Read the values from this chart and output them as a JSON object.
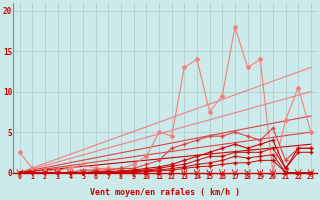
{
  "background_color": "#cceaea",
  "grid_color": "#aac8c8",
  "xlim": [
    -0.5,
    23.5
  ],
  "ylim": [
    0,
    21
  ],
  "xlabel": "Vent moyen/en rafales ( km/h )",
  "yticks": [
    0,
    5,
    10,
    15,
    20
  ],
  "xticks": [
    0,
    1,
    2,
    3,
    4,
    5,
    6,
    7,
    8,
    9,
    10,
    11,
    12,
    13,
    14,
    15,
    16,
    17,
    18,
    19,
    20,
    21,
    22,
    23
  ],
  "lp": "#f08080",
  "mp": "#e04040",
  "dr": "#cc0000",
  "wavy_x": [
    0,
    1,
    2,
    3,
    4,
    5,
    6,
    7,
    8,
    9,
    10,
    11,
    12,
    13,
    14,
    15,
    16,
    17,
    18,
    19,
    20,
    21,
    22,
    23
  ],
  "wavy_y": [
    2.5,
    0.5,
    0.2,
    0.3,
    0.5,
    1.0,
    0.5,
    0.5,
    0.5,
    1.0,
    2.0,
    5.0,
    4.5,
    13.0,
    14.0,
    7.5,
    9.5,
    18.0,
    13.0,
    14.0,
    0.0,
    6.5,
    10.5,
    5.0
  ],
  "trend1_x": [
    0,
    23
  ],
  "trend1_y": [
    0,
    13.0
  ],
  "trend2_x": [
    0,
    23
  ],
  "trend2_y": [
    0,
    10.0
  ],
  "trend3_x": [
    0,
    23
  ],
  "trend3_y": [
    0,
    7.0
  ],
  "trend4_x": [
    0,
    23
  ],
  "trend4_y": [
    0,
    5.0
  ],
  "trend5_x": [
    0,
    23
  ],
  "trend5_y": [
    0,
    3.5
  ],
  "line_med_x": [
    0,
    1,
    2,
    3,
    4,
    5,
    6,
    7,
    8,
    9,
    10,
    11,
    12,
    13,
    14,
    15,
    16,
    17,
    18,
    19,
    20,
    21,
    22,
    23
  ],
  "line_med_y": [
    0,
    0,
    0,
    0,
    0,
    0.3,
    0.3,
    0.3,
    0.5,
    0.5,
    1.0,
    1.5,
    3.0,
    3.5,
    4.0,
    4.5,
    4.5,
    5.0,
    4.5,
    4.0,
    5.5,
    1.5,
    3.0,
    3.0
  ],
  "line_dr1_x": [
    0,
    1,
    2,
    3,
    4,
    5,
    6,
    7,
    8,
    9,
    10,
    11,
    12,
    13,
    14,
    15,
    16,
    17,
    18,
    19,
    20,
    21,
    22,
    23
  ],
  "line_dr1_y": [
    0,
    0,
    0,
    0,
    0,
    0,
    0.1,
    0.1,
    0.2,
    0.3,
    0.5,
    0.7,
    1.0,
    1.5,
    2.0,
    2.5,
    3.0,
    3.5,
    3.0,
    3.5,
    4.0,
    0.5,
    3.0,
    3.0
  ],
  "line_dr2_x": [
    0,
    1,
    2,
    3,
    4,
    5,
    6,
    7,
    8,
    9,
    10,
    11,
    12,
    13,
    14,
    15,
    16,
    17,
    18,
    19,
    20,
    21,
    22,
    23
  ],
  "line_dr2_y": [
    0,
    0,
    0,
    0,
    0,
    0,
    0,
    0,
    0.1,
    0.2,
    0.3,
    0.5,
    0.8,
    1.0,
    1.5,
    2.0,
    2.0,
    2.5,
    2.5,
    2.5,
    3.0,
    0.5,
    2.5,
    2.5
  ],
  "line_dr3_x": [
    0,
    1,
    2,
    3,
    4,
    5,
    6,
    7,
    8,
    9,
    10,
    11,
    12,
    13,
    14,
    15,
    16,
    17,
    18,
    19,
    20,
    21,
    22,
    23
  ],
  "line_dr3_y": [
    0,
    0,
    0,
    0,
    0,
    0,
    0,
    0,
    0,
    0.1,
    0.2,
    0.3,
    0.5,
    0.7,
    1.0,
    1.2,
    1.5,
    2.0,
    1.8,
    2.0,
    2.2,
    0.0,
    0.0,
    0.0
  ],
  "line_dr4_x": [
    0,
    1,
    2,
    3,
    4,
    5,
    6,
    7,
    8,
    9,
    10,
    11,
    12,
    13,
    14,
    15,
    16,
    17,
    18,
    19,
    20,
    21,
    22,
    23
  ],
  "line_dr4_y": [
    0,
    0,
    0,
    0,
    0,
    0,
    0,
    0,
    0,
    0,
    0.1,
    0.2,
    0.3,
    0.5,
    0.7,
    0.8,
    1.0,
    1.2,
    1.2,
    1.5,
    1.5,
    0.0,
    0.0,
    0.0
  ]
}
